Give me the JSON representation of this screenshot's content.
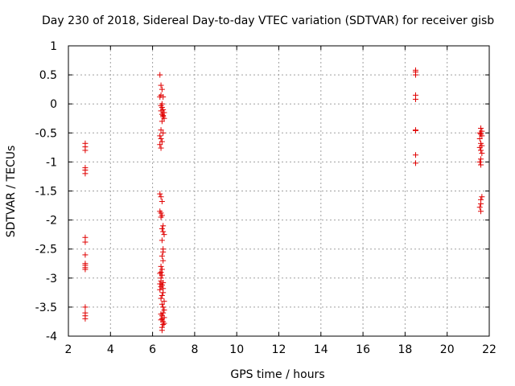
{
  "chart_data": {
    "type": "scatter",
    "title": "Day 230 of 2018, Sidereal Day-to-day VTEC variation (SDTVAR) for receiver gisb",
    "xlabel": "GPS time / hours",
    "ylabel": "SDTVAR / TECUs",
    "xlim": [
      2,
      22
    ],
    "ylim": [
      -4,
      1
    ],
    "xticks": [
      2,
      4,
      6,
      8,
      10,
      12,
      14,
      16,
      18,
      20,
      22
    ],
    "xtick_labels": [
      "2",
      "4",
      "6",
      "8",
      "10",
      "12",
      "14",
      "16",
      "18",
      "20",
      "22"
    ],
    "yticks": [
      1,
      0.5,
      0,
      -0.5,
      -1,
      -1.5,
      -2,
      -2.5,
      -3,
      -3.5,
      -4
    ],
    "ytick_labels": [
      "1",
      "0.5",
      "0",
      "-0.5",
      "-1",
      "-1.5",
      "-2",
      "-2.5",
      "-3",
      "-3.5",
      "-4"
    ],
    "grid": true,
    "marker": "+",
    "color": "#e00000",
    "series": [
      {
        "name": "SDTVAR",
        "x": [
          2.8,
          2.8,
          2.8,
          2.8,
          2.8,
          2.8,
          2.8,
          2.8,
          2.8,
          2.8,
          2.8,
          2.8,
          2.8,
          2.8,
          2.8,
          2.8,
          2.8,
          6.35,
          6.4,
          6.45,
          6.4,
          6.35,
          6.5,
          6.45,
          6.4,
          6.45,
          6.5,
          6.4,
          6.55,
          6.45,
          6.5,
          6.5,
          6.55,
          6.45,
          6.4,
          6.5,
          6.35,
          6.4,
          6.45,
          6.35,
          6.4,
          6.35,
          6.4,
          6.45,
          6.35,
          6.4,
          6.45,
          6.4,
          6.5,
          6.45,
          6.5,
          6.55,
          6.45,
          6.5,
          6.5,
          6.45,
          6.5,
          6.4,
          6.45,
          6.4,
          6.35,
          6.45,
          6.4,
          6.4,
          6.5,
          6.35,
          6.45,
          6.4,
          6.5,
          6.35,
          6.5,
          6.45,
          6.4,
          6.55,
          6.45,
          6.5,
          6.55,
          6.5,
          6.4,
          6.45,
          6.55,
          6.45,
          6.4,
          6.5,
          6.55,
          6.5,
          6.45,
          6.45,
          18.5,
          18.5,
          18.5,
          18.5,
          18.5,
          18.5,
          18.5,
          18.5,
          18.5,
          21.6,
          21.65,
          21.55,
          21.6,
          21.65,
          21.55,
          21.6,
          21.65,
          21.55,
          21.6,
          21.65,
          21.6,
          21.55,
          21.6,
          21.65,
          21.6,
          21.6,
          21.55,
          21.6
        ],
        "y": [
          -0.68,
          -0.74,
          -0.8,
          -1.1,
          -1.14,
          -1.2,
          -2.3,
          -2.38,
          -2.6,
          -2.75,
          -2.78,
          -2.82,
          -2.85,
          -3.5,
          -3.6,
          -3.65,
          -3.7,
          0.5,
          0.32,
          0.25,
          0.15,
          0.12,
          0.12,
          0.0,
          -0.03,
          -0.06,
          -0.1,
          -0.12,
          -0.15,
          -0.18,
          -0.2,
          -0.22,
          -0.25,
          -0.3,
          -0.45,
          -0.5,
          -0.55,
          -0.6,
          -0.65,
          -0.7,
          -0.76,
          -1.55,
          -1.6,
          -1.68,
          -1.85,
          -1.88,
          -1.92,
          -1.95,
          -2.1,
          -2.15,
          -2.2,
          -2.25,
          -2.35,
          -2.5,
          -2.55,
          -2.62,
          -2.7,
          -2.8,
          -2.85,
          -2.9,
          -2.92,
          -2.95,
          -3.0,
          -3.05,
          -3.08,
          -3.1,
          -3.12,
          -3.15,
          -3.18,
          -3.2,
          -3.25,
          -3.3,
          -3.35,
          -3.4,
          -3.45,
          -3.5,
          -3.55,
          -3.6,
          -3.62,
          -3.65,
          -3.68,
          -3.7,
          -3.72,
          -3.75,
          -3.78,
          -3.8,
          -3.85,
          -3.9,
          0.58,
          0.55,
          0.5,
          0.15,
          0.08,
          -0.45,
          -0.46,
          -0.88,
          -1.02,
          -0.42,
          -0.47,
          -0.5,
          -0.52,
          -0.55,
          -0.6,
          -0.68,
          -0.72,
          -0.75,
          -0.8,
          -0.85,
          -0.95,
          -1.0,
          -1.05,
          -1.6,
          -1.65,
          -1.72,
          -1.78,
          -1.85
        ]
      }
    ]
  }
}
